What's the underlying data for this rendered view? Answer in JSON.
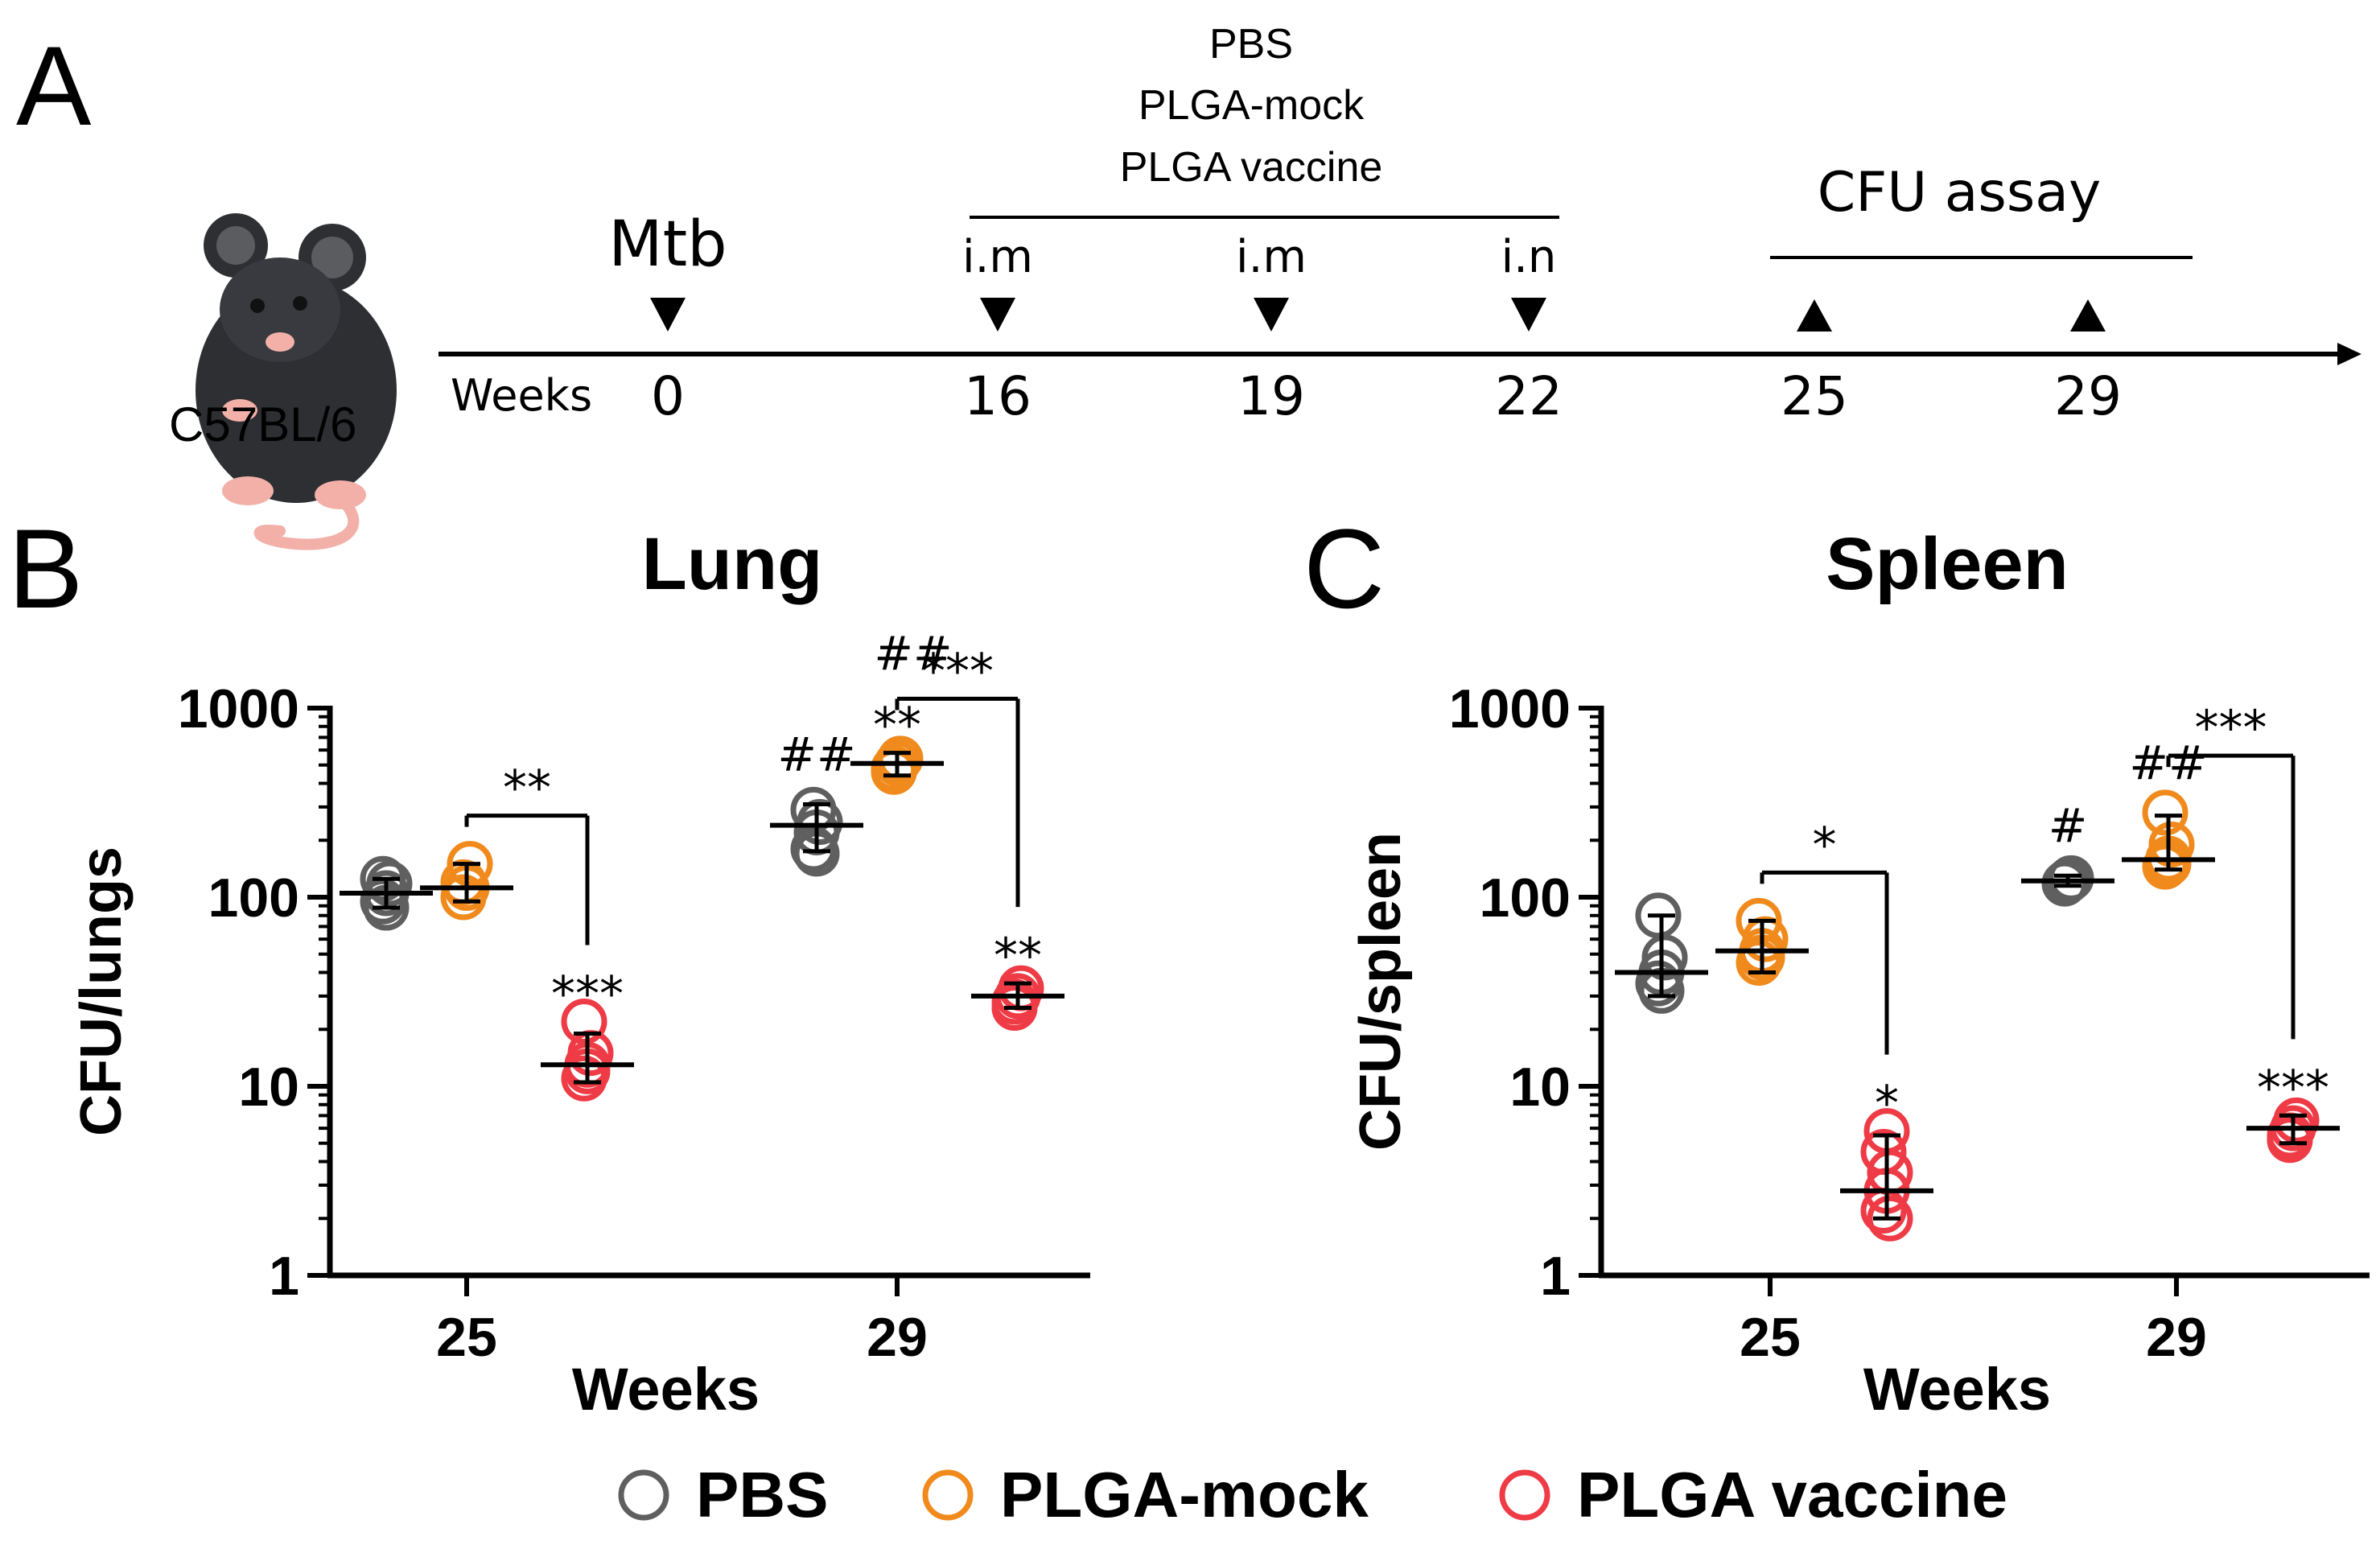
{
  "colors": {
    "pbs": "#5f5f5f",
    "mock": "#f08a1c",
    "vaccine": "#ee3b45",
    "ink": "#000000",
    "mouse_body": "#2d2f33",
    "mouse_pink": "#f2b0a8"
  },
  "panel_a": {
    "label": "A",
    "strain_label": "C57BL/6",
    "treatments": [
      "PBS",
      "PLGA-mock",
      "PLGA vaccine"
    ],
    "weeks_label": "Weeks",
    "infection_label": "Mtb",
    "routes": [
      "i.m",
      "i.m",
      "i.n"
    ],
    "assay_label": "CFU assay",
    "timepoints": [
      {
        "week": "0",
        "marker": "down",
        "label_key": "infection"
      },
      {
        "week": "16",
        "marker": "down",
        "label_key": "route0"
      },
      {
        "week": "19",
        "marker": "down",
        "label_key": "route1"
      },
      {
        "week": "22",
        "marker": "down",
        "label_key": "route2"
      },
      {
        "week": "25",
        "marker": "up",
        "label_key": ""
      },
      {
        "week": "29",
        "marker": "up",
        "label_key": ""
      }
    ]
  },
  "legend": {
    "pbs": "PBS",
    "mock": "PLGA-mock",
    "vaccine": "PLGA vaccine"
  },
  "chart_data": [
    {
      "panel": "B",
      "type": "scatter",
      "title": "Lung",
      "xlabel": "Weeks",
      "ylabel": "CFU/lungs",
      "yscale": "log",
      "ylim": [
        1,
        1000
      ],
      "yticks": [
        "1",
        "10",
        "100",
        "1000"
      ],
      "categories": [
        "25",
        "29"
      ],
      "series": [
        {
          "name": "PBS",
          "color_key": "pbs",
          "points": [
            {
              "week": "25",
              "mean": 105,
              "err_low": 88,
              "err_high": 125,
              "raw": [
                95,
                105,
                118,
                125,
                88
              ],
              "above": ""
            },
            {
              "week": "29",
              "mean": 240,
              "err_low": 175,
              "err_high": 310,
              "raw": [
                180,
                220,
                250,
                290,
                170
              ],
              "above": "##"
            }
          ]
        },
        {
          "name": "PLGA-mock",
          "color_key": "mock",
          "points": [
            {
              "week": "25",
              "mean": 112,
              "err_low": 95,
              "err_high": 150,
              "raw": [
                100,
                112,
                150,
                120
              ],
              "above": ""
            },
            {
              "week": "29",
              "mean": 510,
              "err_low": 440,
              "err_high": 580,
              "raw": [
                460,
                510,
                540,
                480
              ],
              "above": "**"
            }
          ]
        },
        {
          "name": "PLGA vaccine",
          "color_key": "vaccine",
          "points": [
            {
              "week": "25",
              "mean": 13,
              "err_low": 10.5,
              "err_high": 19,
              "raw": [
                11,
                13,
                15,
                22,
                12
              ],
              "above": "***"
            },
            {
              "week": "29",
              "mean": 30,
              "err_low": 26,
              "err_high": 35,
              "raw": [
                28,
                30,
                33,
                26
              ],
              "above": "**"
            }
          ]
        }
      ],
      "brackets": [
        {
          "week": "25",
          "left": "PLGA-mock",
          "right": "PLGA vaccine",
          "label": "**",
          "level": 270
        },
        {
          "week": "29",
          "left": "PLGA-mock",
          "right": "PLGA vaccine",
          "label": "***",
          "level": 1120
        }
      ],
      "extra_marks": [
        {
          "week": "29",
          "series": "PLGA-mock",
          "label": "##",
          "level": 1600
        }
      ]
    },
    {
      "panel": "C",
      "type": "scatter",
      "title": "Spleen",
      "xlabel": "Weeks",
      "ylabel": "CFU/spleen",
      "yscale": "log",
      "ylim": [
        1,
        1000
      ],
      "yticks": [
        "1",
        "10",
        "100",
        "1000"
      ],
      "categories": [
        "25",
        "29"
      ],
      "series": [
        {
          "name": "PBS",
          "color_key": "pbs",
          "points": [
            {
              "week": "25",
              "mean": 40,
              "err_low": 30,
              "err_high": 80,
              "raw": [
                35,
                40,
                48,
                80,
                32
              ],
              "above": ""
            },
            {
              "week": "29",
              "mean": 122,
              "err_low": 115,
              "err_high": 130,
              "raw": [
                118,
                122,
                126
              ],
              "above": "#"
            }
          ]
        },
        {
          "name": "PLGA-mock",
          "color_key": "mock",
          "points": [
            {
              "week": "25",
              "mean": 52,
              "err_low": 40,
              "err_high": 75,
              "raw": [
                45,
                52,
                60,
                75,
                48
              ],
              "above": ""
            },
            {
              "week": "29",
              "mean": 158,
              "err_low": 140,
              "err_high": 270,
              "raw": [
                145,
                160,
                190,
                280,
                150
              ],
              "above": "##"
            }
          ]
        },
        {
          "name": "PLGA vaccine",
          "color_key": "vaccine",
          "points": [
            {
              "week": "25",
              "mean": 2.8,
              "err_low": 2.0,
              "err_high": 5.5,
              "raw": [
                2.2,
                2.8,
                3.5,
                4.5,
                5.8,
                2.0
              ],
              "above": "*"
            },
            {
              "week": "29",
              "mean": 6.0,
              "err_low": 5.0,
              "err_high": 7.0,
              "raw": [
                5.5,
                6.0,
                6.6,
                5.2
              ],
              "above": "***"
            }
          ]
        }
      ],
      "brackets": [
        {
          "week": "25",
          "left": "PLGA-mock",
          "right": "PLGA vaccine",
          "label": "*",
          "level": 135
        },
        {
          "week": "29",
          "left": "PLGA-mock",
          "right": "PLGA vaccine",
          "label": "***",
          "level": 560
        }
      ],
      "extra_marks": []
    }
  ]
}
